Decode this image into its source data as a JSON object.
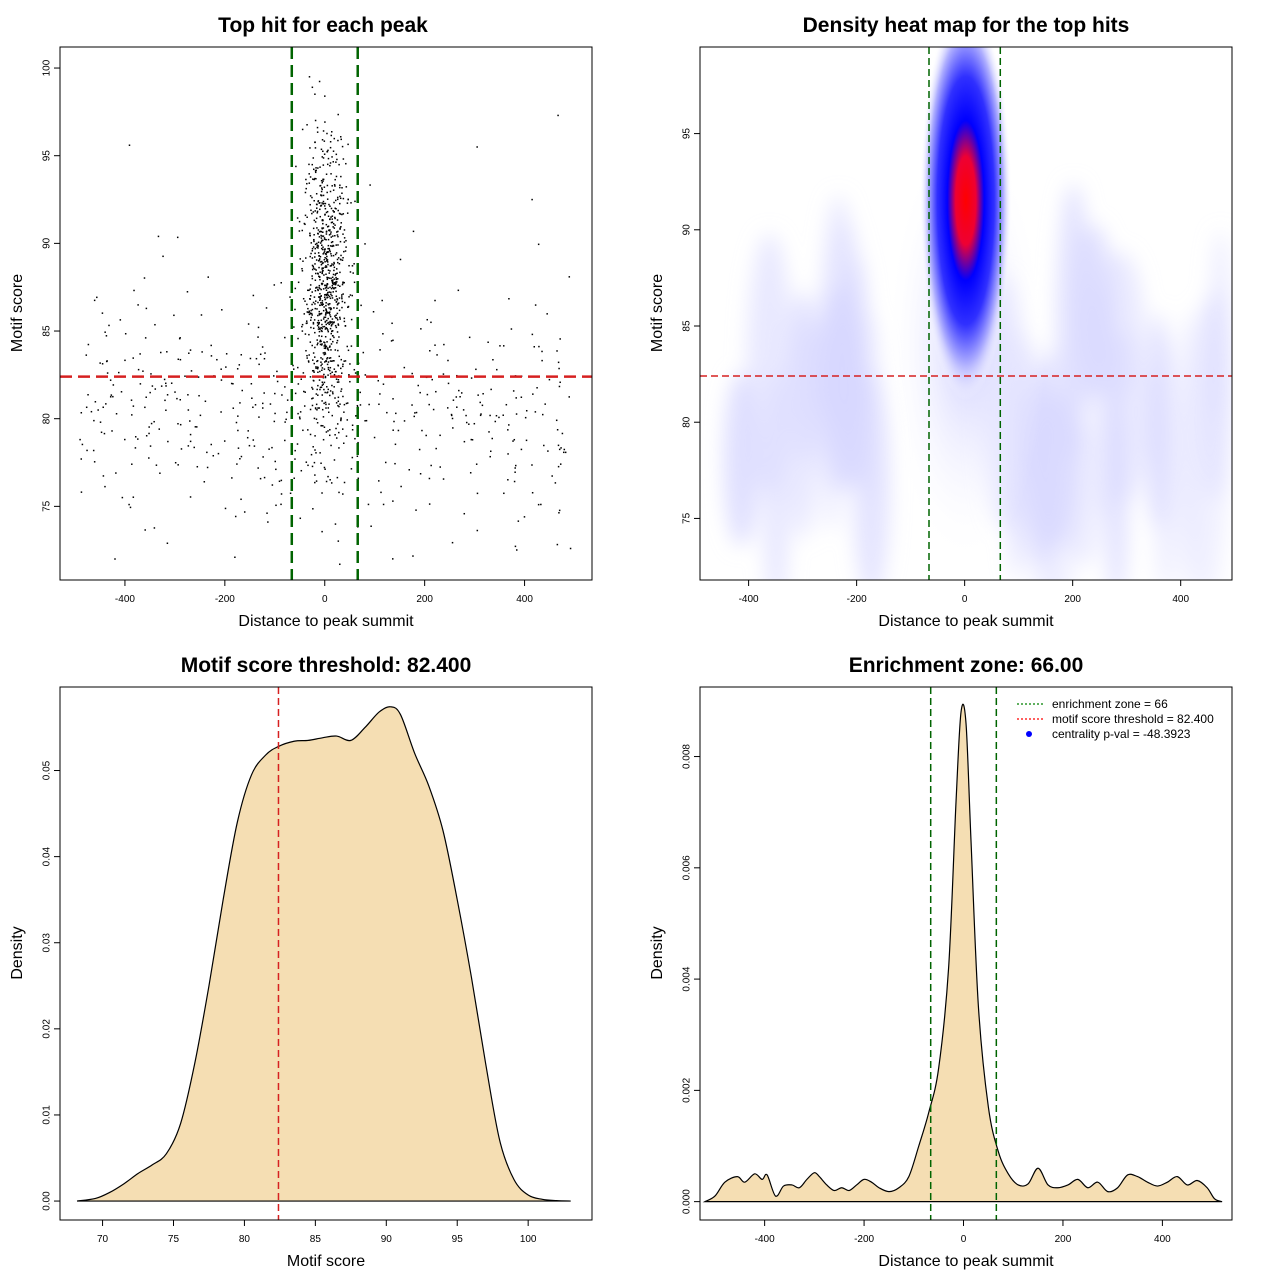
{
  "chart_data": [
    {
      "id": "scatter",
      "type": "scatter",
      "title": "Top hit for each peak",
      "xlabel": "Distance to peak summit",
      "ylabel": "Motif score",
      "xlim": [
        -530,
        535
      ],
      "ylim": [
        70.8,
        101.2
      ],
      "xticks": [
        -400,
        -200,
        0,
        200,
        400
      ],
      "yticks": [
        75,
        80,
        85,
        90,
        95,
        100
      ],
      "threshold_y": 82.4,
      "zone_x": [
        -66,
        66
      ],
      "threshold_color": "#d62020",
      "zone_color": "#006400",
      "point_color": "#000000",
      "sample_points": [
        {
          "x": -420,
          "y": 72.0
        },
        {
          "x": -391,
          "y": 95.6
        },
        {
          "x": -180,
          "y": 72.1
        },
        {
          "x": 0,
          "y": 98.4
        },
        {
          "x": 305,
          "y": 95.5
        },
        {
          "x": 467,
          "y": 97.3
        },
        {
          "x": 492,
          "y": 72.6
        },
        {
          "x": 30,
          "y": 71.7
        },
        {
          "x": -333,
          "y": 90.4
        },
        {
          "x": 415,
          "y": 92.5
        }
      ]
    },
    {
      "id": "heatmap",
      "type": "heatmap",
      "title": "Density heat map for the top hits",
      "xlabel": "Distance to peak summit",
      "ylabel": "Motif score",
      "xlim": [
        -490,
        495
      ],
      "ylim": [
        71.8,
        99.5
      ],
      "xticks": [
        -400,
        -200,
        0,
        200,
        400
      ],
      "yticks": [
        75,
        80,
        85,
        90,
        95
      ],
      "threshold_y": 82.4,
      "zone_x": [
        -66,
        66
      ],
      "peak": {
        "x": 2,
        "y": 91.0
      },
      "colors": {
        "low": "#ffffff",
        "mid": "#0000ff",
        "high": "#ff0000"
      },
      "threshold_color": "#d62020",
      "zone_color": "#006400"
    },
    {
      "id": "score-density",
      "type": "area",
      "title": "Motif score threshold: 82.400",
      "xlabel": "Motif score",
      "ylabel": "Density",
      "xlim": [
        67.0,
        104.5
      ],
      "ylim": [
        -0.0022,
        0.0597
      ],
      "xticks": [
        70,
        75,
        80,
        85,
        90,
        95,
        100
      ],
      "yticks": [
        0.0,
        0.01,
        0.02,
        0.03,
        0.04,
        0.05
      ],
      "ytick_labels": [
        "0.00",
        "0.01",
        "0.02",
        "0.03",
        "0.04",
        "0.05"
      ],
      "threshold_x": 82.4,
      "fill_color": "#f5deb3",
      "threshold_color": "#d62020",
      "x": [
        68.2,
        69.5,
        70.5,
        71.5,
        72.5,
        73.5,
        74.5,
        75.5,
        76.5,
        77.5,
        78.5,
        79.5,
        80.5,
        81.5,
        82.4,
        83.5,
        84.5,
        85.5,
        86.5,
        87.5,
        88.5,
        89.5,
        90.3,
        91.0,
        92.0,
        93.0,
        94.0,
        95.0,
        96.0,
        97.0,
        98.0,
        99.0,
        100.0,
        101.0,
        102.0,
        103.0
      ],
      "y": [
        0.0,
        0.0003,
        0.001,
        0.002,
        0.0032,
        0.0042,
        0.0055,
        0.009,
        0.016,
        0.025,
        0.035,
        0.044,
        0.0495,
        0.0518,
        0.0528,
        0.0534,
        0.0535,
        0.0538,
        0.054,
        0.0535,
        0.055,
        0.0568,
        0.0574,
        0.0565,
        0.052,
        0.0482,
        0.043,
        0.035,
        0.026,
        0.016,
        0.007,
        0.0025,
        0.0007,
        0.0002,
        5e-05,
        0.0
      ]
    },
    {
      "id": "distance-density",
      "type": "area",
      "title": "Enrichment zone: 66.00",
      "xlabel": "Distance to peak summit",
      "ylabel": "Density",
      "xlim": [
        -530,
        540
      ],
      "ylim": [
        -0.00033,
        0.00925
      ],
      "xticks": [
        -400,
        -200,
        0,
        200,
        400
      ],
      "yticks": [
        0.0,
        0.002,
        0.004,
        0.006,
        0.008
      ],
      "ytick_labels": [
        "0.000",
        "0.002",
        "0.004",
        "0.006",
        "0.008"
      ],
      "zone_x": [
        -66,
        66
      ],
      "fill_color": "#f5deb3",
      "zone_color": "#006400",
      "x": [
        -520,
        -500,
        -480,
        -455,
        -440,
        -420,
        -405,
        -395,
        -378,
        -362,
        -345,
        -330,
        -315,
        -300,
        -290,
        -275,
        -260,
        -245,
        -230,
        -215,
        -200,
        -185,
        -170,
        -150,
        -130,
        -110,
        -90,
        -70,
        -50,
        -30,
        -15,
        -5,
        5,
        15,
        30,
        50,
        70,
        90,
        110,
        130,
        150,
        170,
        190,
        210,
        230,
        250,
        270,
        290,
        310,
        330,
        350,
        370,
        390,
        410,
        430,
        450,
        470,
        490,
        505,
        520
      ],
      "y": [
        0.0,
        0.0001,
        0.00035,
        0.00045,
        0.00035,
        0.0005,
        0.0004,
        0.00048,
        0.0001,
        0.00028,
        0.0003,
        0.00025,
        0.0004,
        0.00052,
        0.00045,
        0.0003,
        0.0002,
        0.00025,
        0.0002,
        0.0003,
        0.0004,
        0.00035,
        0.00025,
        0.00018,
        0.00025,
        0.00045,
        0.001,
        0.0016,
        0.0024,
        0.0042,
        0.0072,
        0.0088,
        0.0086,
        0.0065,
        0.0035,
        0.0017,
        0.0009,
        0.0005,
        0.0003,
        0.00032,
        0.0006,
        0.0003,
        0.00025,
        0.0003,
        0.0004,
        0.00025,
        0.00035,
        0.00018,
        0.00025,
        0.00048,
        0.00045,
        0.00035,
        0.00028,
        0.00035,
        0.00045,
        0.0003,
        0.00038,
        0.00025,
        5e-05,
        0.0
      ],
      "legend": [
        {
          "label": "enrichment zone = 66",
          "color": "#008000",
          "kind": "dotted-line"
        },
        {
          "label": "motif score threshold = 82.400",
          "color": "#ff0000",
          "kind": "dotted-line"
        },
        {
          "label": "centrality p-val = -48.3923",
          "color": "#0000ff",
          "kind": "point"
        }
      ],
      "legend_position": "top-right"
    }
  ]
}
